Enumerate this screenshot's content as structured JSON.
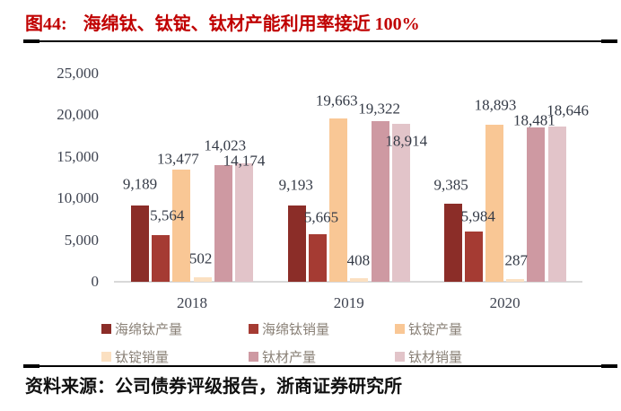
{
  "header": {
    "tag": "图44:",
    "title": "海绵钛、钛锭、钛材产能利用率接近 100%"
  },
  "footer": {
    "source": "资料来源：公司债券评级报告，浙商证券研究所"
  },
  "chart_data": {
    "type": "bar",
    "title": "海绵钛、钛锭、钛材产能利用率接近 100%",
    "categories": [
      "2018",
      "2019",
      "2020"
    ],
    "series": [
      {
        "key": "sponge-ti-production",
        "name": "海绵钛产量",
        "color": "#8b2d28",
        "values": [
          9189,
          9193,
          9385
        ]
      },
      {
        "key": "sponge-ti-sales",
        "name": "海绵钛销量",
        "color": "#a53b33",
        "values": [
          5564,
          5665,
          5984
        ]
      },
      {
        "key": "ti-ingot-production",
        "name": "钛锭产量",
        "color": "#f9c795",
        "values": [
          13477,
          19663,
          18893
        ]
      },
      {
        "key": "ti-ingot-sales",
        "name": "钛锭销量",
        "color": "#fbe0c1",
        "values": [
          502,
          408,
          287
        ]
      },
      {
        "key": "ti-material-production",
        "name": "钛材产量",
        "color": "#ce99a2",
        "values": [
          14023,
          19322,
          18481
        ]
      },
      {
        "key": "ti-material-sales",
        "name": "钛材销量",
        "color": "#e2c4c9",
        "values": [
          14174,
          18914,
          18646
        ]
      }
    ],
    "xlabel": "",
    "ylabel": "",
    "ylim": [
      0,
      25000
    ],
    "yticks": [
      0,
      5000,
      10000,
      15000,
      20000,
      25000
    ],
    "ytick_labels": [
      "0",
      "5,000",
      "10,000",
      "15,000",
      "20,000",
      "25,000"
    ],
    "grid": false,
    "data_labels": true,
    "legend_position": "bottom",
    "colors": {
      "axis_line": "#d9d9d9",
      "tick_text": "#3e4350",
      "data_label_text": "#343a46",
      "legend_text": "#8a8177",
      "title_red": "#c00000"
    }
  }
}
